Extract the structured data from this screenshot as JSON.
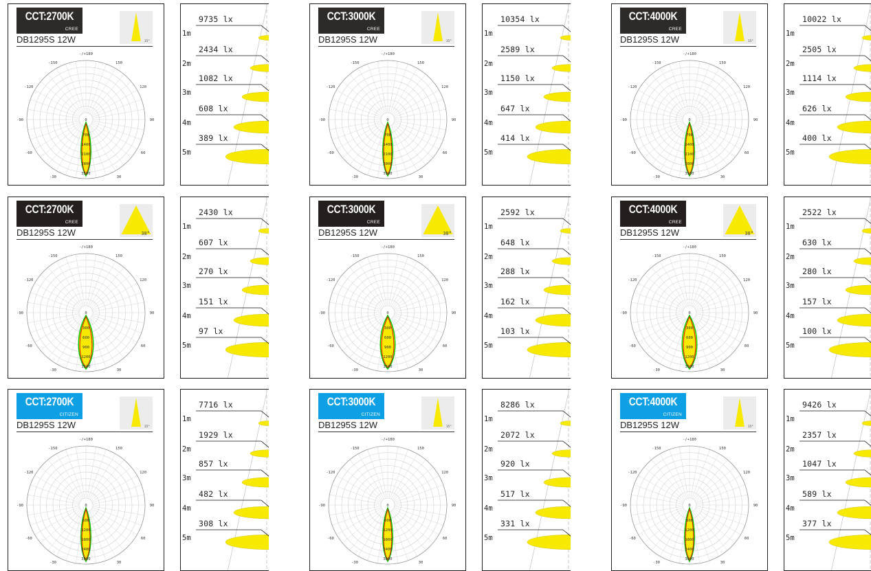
{
  "colors": {
    "dark": "#2e2a28",
    "cree_dark": "#241f1c",
    "citizen": "#0ea0e4",
    "beam": "#f7ea00",
    "curve_green": "#00c800",
    "curve_red": "#e01010"
  },
  "polar_labels": {
    "top": "-/+180",
    "left150": "-150",
    "right150": "150",
    "left120": "-120",
    "right120": "120",
    "left90": "-90",
    "right90": "90",
    "left60": "-60",
    "right60": "60",
    "left30": "-30",
    "right30": "30",
    "bottom": "0",
    "center": "0"
  },
  "distance_labels": [
    "1m",
    "2m",
    "3m",
    "4m",
    "5m"
  ],
  "units": "lx",
  "rows": [
    {
      "beam_angle": "15°",
      "radial_labels": [
        "700",
        "1400",
        "2100",
        "2800",
        "3500"
      ],
      "beam_fraction": 0.12,
      "cards": [
        {
          "cct": "CCT:2700K",
          "brand": "CREE",
          "model": "DB1295S 12W",
          "lux": [
            "9735 lx",
            "2434 lx",
            "1082 lx",
            "608 lx",
            "389 lx"
          ]
        },
        {
          "cct": "CCT:3000K",
          "brand": "CREE",
          "model": "DB1295S 12W",
          "lux": [
            "10354 lx",
            "2589 lx",
            "1150 lx",
            "647 lx",
            "414 lx"
          ]
        },
        {
          "cct": "CCT:4000K",
          "brand": "CREE",
          "model": "DB1295S 12W",
          "lux": [
            "10022 lx",
            "2505 lx",
            "1114 lx",
            "626 lx",
            "400 lx"
          ]
        }
      ]
    },
    {
      "beam_angle": "38°",
      "radial_labels": [
        "300",
        "600",
        "900",
        "1200",
        "1500"
      ],
      "beam_fraction": 0.28,
      "cards": [
        {
          "cct": "CCT:2700K",
          "brand": "CREE",
          "model": "DB1295S 12W",
          "lux": [
            "2430 lx",
            "607 lx",
            "270 lx",
            "151 lx",
            "97 lx"
          ]
        },
        {
          "cct": "CCT:3000K",
          "brand": "CREE",
          "model": "DB1295S 12W",
          "lux": [
            "2592 lx",
            "648 lx",
            "288 lx",
            "162 lx",
            "103 lx"
          ]
        },
        {
          "cct": "CCT:4000K",
          "brand": "CREE",
          "model": "DB1295S 12W",
          "lux": [
            "2522 lx",
            "630 lx",
            "280 lx",
            "157 lx",
            "100 lx"
          ]
        }
      ]
    },
    {
      "beam_angle": "15°",
      "radial_labels": [
        "600",
        "1200",
        "1800",
        "2400",
        "3000"
      ],
      "beam_fraction": 0.12,
      "cards": [
        {
          "cct": "CCT:2700K",
          "brand": "CITIZEN",
          "model": "DB1295S 12W",
          "lux": [
            "7716 lx",
            "1929 lx",
            "857 lx",
            "482 lx",
            "308 lx"
          ]
        },
        {
          "cct": "CCT:3000K",
          "brand": "CITIZEN",
          "model": "DB1295S 12W",
          "lux": [
            "8286 lx",
            "2072 lx",
            "920 lx",
            "517 lx",
            "331 lx"
          ]
        },
        {
          "cct": "CCT:4000K",
          "brand": "CITIZEN",
          "model": "DB1295S 12W",
          "lux": [
            "9426 lx",
            "2357 lx",
            "1047 lx",
            "589 lx",
            "377 lx"
          ]
        }
      ]
    }
  ]
}
